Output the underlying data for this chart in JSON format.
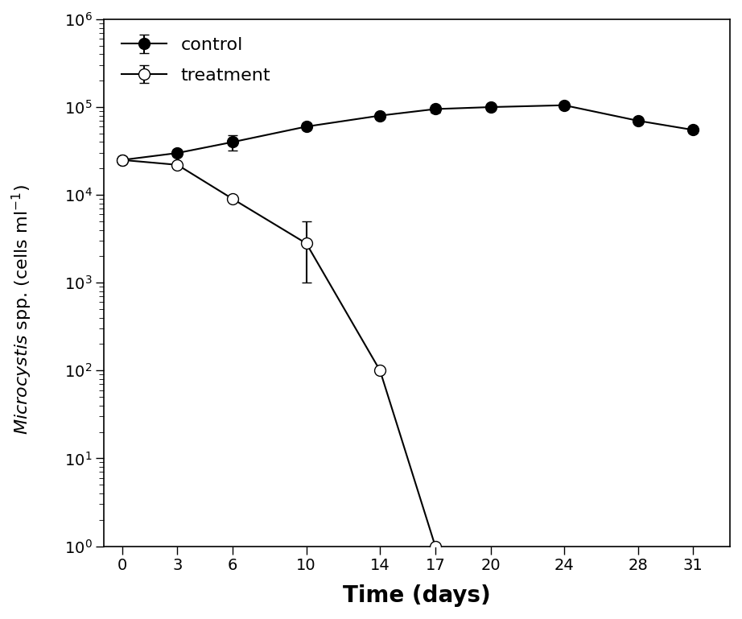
{
  "title": "",
  "xlabel": "Time (days)",
  "xlim": [
    -1,
    33
  ],
  "ylim_log": [
    1,
    1000000
  ],
  "xticks": [
    0,
    3,
    6,
    10,
    14,
    17,
    20,
    24,
    28,
    31
  ],
  "control_x": [
    0,
    3,
    6,
    10,
    14,
    17,
    20,
    24,
    28,
    31
  ],
  "control_y": [
    25000,
    30000,
    40000,
    60000,
    80000,
    95000,
    100000,
    105000,
    70000,
    55000
  ],
  "control_yerr_upper": [
    2000,
    2500,
    8000,
    5000,
    5000,
    8000,
    5000,
    5000,
    5000,
    4000
  ],
  "control_yerr_lower": [
    2000,
    2500,
    8000,
    5000,
    5000,
    8000,
    5000,
    5000,
    5000,
    4000
  ],
  "treatment_x": [
    0,
    3,
    6,
    10,
    14,
    17
  ],
  "treatment_y": [
    25000,
    22000,
    9000,
    2800,
    100,
    1
  ],
  "treatment_yerr_upper": [
    1500,
    1500,
    0,
    2200,
    0,
    0
  ],
  "treatment_yerr_lower": [
    1500,
    1500,
    0,
    1800,
    0,
    0
  ],
  "line_color": "#000000",
  "background_color": "#ffffff",
  "legend_labels": [
    "control",
    "treatment"
  ],
  "marker_size": 10,
  "line_width": 1.5,
  "xlabel_fontsize": 20,
  "ylabel_fontsize": 16,
  "tick_fontsize": 14,
  "legend_fontsize": 16
}
